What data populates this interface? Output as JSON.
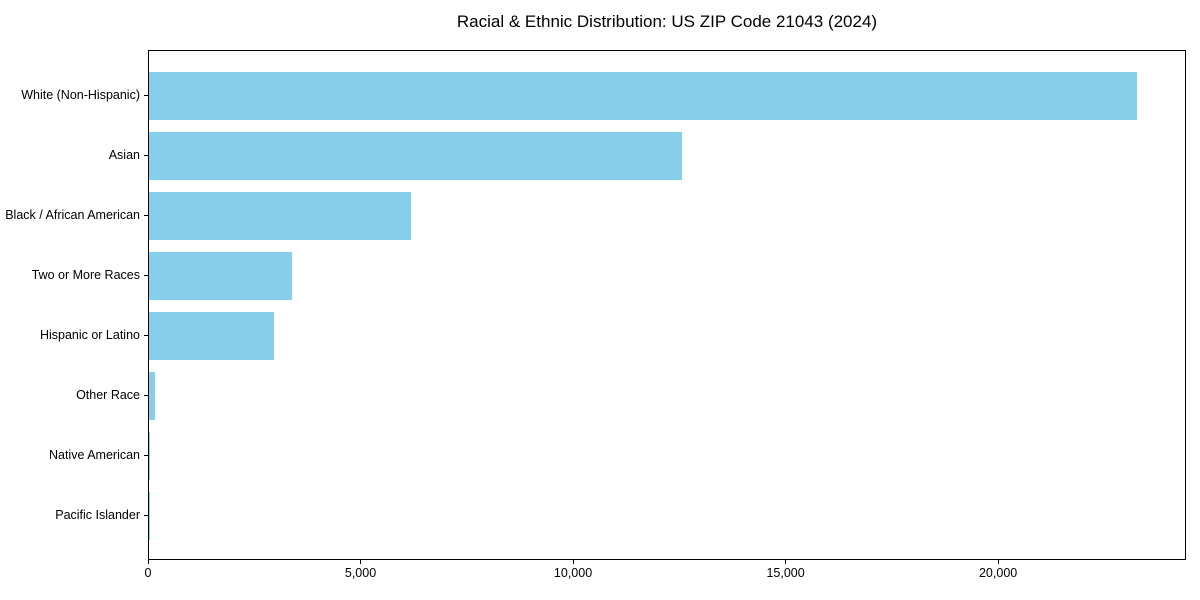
{
  "figure": {
    "background": "#ffffff"
  },
  "chart_data": {
    "type": "bar",
    "orientation": "horizontal",
    "title": "Racial & Ethnic Distribution: US ZIP Code 21043 (2024)",
    "categories": [
      "White (Non-Hispanic)",
      "Asian",
      "Black / African American",
      "Two or More Races",
      "Hispanic or Latino",
      "Other Race",
      "Native American",
      "Pacific Islander"
    ],
    "values": [
      23240,
      12530,
      6160,
      3370,
      2950,
      150,
      30,
      10
    ],
    "xlabel": "",
    "ylabel": "",
    "xlim": [
      0,
      24420
    ],
    "xticks": [
      0,
      5000,
      10000,
      15000,
      20000
    ],
    "xtick_labels": [
      "0",
      "5,000",
      "10,000",
      "15,000",
      "20,000"
    ],
    "bar_color": "#87CEEB",
    "axis_color": "#000000",
    "text_color": "#000000",
    "grid": false,
    "legend": "none"
  }
}
